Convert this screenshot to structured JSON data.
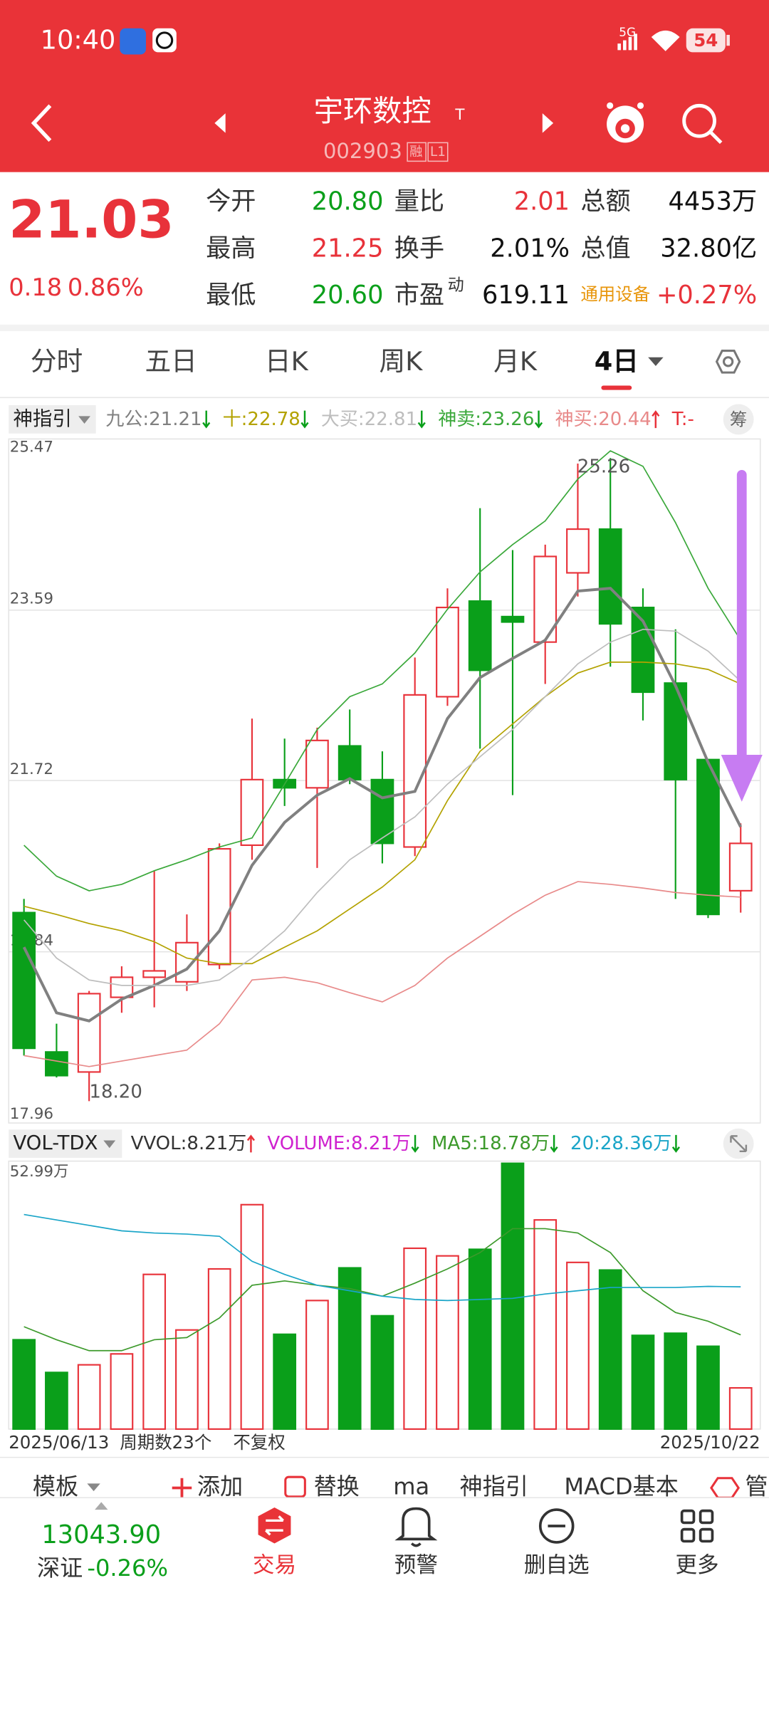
{
  "status_bar": {
    "time": "10:40",
    "network": "5G",
    "battery": "54"
  },
  "header": {
    "title": "宇环数控",
    "title_badge": "T",
    "code": "002903",
    "badges": [
      "融",
      "L1"
    ]
  },
  "quote": {
    "price": "21.03",
    "change": "0.18",
    "change_pct": "0.86%",
    "fields": [
      [
        {
          "label": "今开",
          "value": "20.80",
          "color": "#0a9f1a"
        },
        {
          "label": "量比",
          "value": "2.01",
          "color": "#e8323a"
        },
        {
          "label": "总额",
          "value": "4453万",
          "color": "#111111"
        }
      ],
      [
        {
          "label": "最高",
          "value": "21.25",
          "color": "#e8323a"
        },
        {
          "label": "换手",
          "value": "2.01%",
          "color": "#111111"
        },
        {
          "label": "总值",
          "value": "32.80亿",
          "color": "#111111"
        }
      ],
      [
        {
          "label": "最低",
          "value": "20.60",
          "color": "#0a9f1a"
        },
        {
          "label": "市盈",
          "label_sup": "动",
          "value": "619.11",
          "color": "#111111"
        },
        {
          "label": "通用设备",
          "label_color": "#e8960c",
          "value": "+0.27%",
          "color": "#e8323a"
        }
      ]
    ]
  },
  "tabs": {
    "items": [
      "分时",
      "五日",
      "日K",
      "周K",
      "月K",
      "4日"
    ],
    "active": 5
  },
  "kline": {
    "indicator": "神指引",
    "button": "筹",
    "ylim": [
      17.96,
      25.47
    ],
    "yticks": [
      17.96,
      19.84,
      21.72,
      23.59,
      25.47
    ],
    "annotations": {
      "high": "25.26",
      "low": "18.20"
    },
    "candles": [
      {
        "open": 20.27,
        "high": 20.42,
        "low": 18.7,
        "close": 18.78
      },
      {
        "open": 18.74,
        "high": 19.05,
        "low": 18.46,
        "close": 18.48
      },
      {
        "open": 18.52,
        "high": 19.41,
        "low": 18.2,
        "close": 19.38
      },
      {
        "open": 19.34,
        "high": 19.68,
        "low": 19.17,
        "close": 19.56
      },
      {
        "open": 19.56,
        "high": 20.73,
        "low": 19.23,
        "close": 19.63
      },
      {
        "open": 19.51,
        "high": 20.25,
        "low": 19.41,
        "close": 19.94
      },
      {
        "open": 19.7,
        "high": 21.03,
        "low": 19.65,
        "close": 20.97
      },
      {
        "open": 21.01,
        "high": 22.4,
        "low": 20.85,
        "close": 21.73
      },
      {
        "open": 21.73,
        "high": 22.18,
        "low": 21.44,
        "close": 21.64
      },
      {
        "open": 21.64,
        "high": 22.3,
        "low": 20.76,
        "close": 22.16
      },
      {
        "open": 22.1,
        "high": 22.5,
        "low": 21.68,
        "close": 21.73
      },
      {
        "open": 21.73,
        "high": 22.04,
        "low": 20.81,
        "close": 21.03
      },
      {
        "open": 20.99,
        "high": 23.07,
        "low": 20.89,
        "close": 22.66
      },
      {
        "open": 22.64,
        "high": 23.83,
        "low": 22.54,
        "close": 23.62
      },
      {
        "open": 23.69,
        "high": 24.71,
        "low": 22.07,
        "close": 22.93
      },
      {
        "open": 23.52,
        "high": 24.25,
        "low": 21.56,
        "close": 23.46
      },
      {
        "open": 23.24,
        "high": 24.31,
        "low": 22.78,
        "close": 24.18
      },
      {
        "open": 24.0,
        "high": 25.2,
        "low": 23.74,
        "close": 24.48
      },
      {
        "open": 24.48,
        "high": 25.26,
        "low": 22.97,
        "close": 23.44
      },
      {
        "open": 23.62,
        "high": 23.83,
        "low": 22.38,
        "close": 22.69
      },
      {
        "open": 22.79,
        "high": 23.38,
        "low": 20.42,
        "close": 21.73
      },
      {
        "open": 21.95,
        "high": 21.95,
        "low": 20.21,
        "close": 20.25
      },
      {
        "open": 20.51,
        "high": 21.25,
        "low": 20.27,
        "close": 21.03
      }
    ],
    "series": [
      {
        "label": "九公:",
        "value": "21.21",
        "trend": "down",
        "color": "#808080",
        "values": [
          19.89,
          19.17,
          19.08,
          19.32,
          19.47,
          19.65,
          20.07,
          20.79,
          21.26,
          21.56,
          21.74,
          21.53,
          21.6,
          22.4,
          22.85,
          23.06,
          23.26,
          23.8,
          23.83,
          23.47,
          22.76,
          21.92,
          21.21
        ]
      },
      {
        "label": "十:",
        "value": "22.78",
        "trend": "down",
        "color": "#b3a200",
        "values": [
          20.34,
          20.25,
          20.15,
          20.07,
          19.95,
          19.77,
          19.71,
          19.71,
          19.89,
          20.07,
          20.31,
          20.55,
          20.85,
          21.5,
          22.04,
          22.34,
          22.64,
          22.9,
          23.02,
          23.02,
          23.0,
          22.94,
          22.78
        ]
      },
      {
        "label": "大买:",
        "value": "22.81",
        "trend": "down",
        "color": "#bdbdbd",
        "values": [
          20.19,
          19.77,
          19.53,
          19.47,
          19.47,
          19.47,
          19.53,
          19.77,
          20.07,
          20.49,
          20.85,
          21.09,
          21.32,
          21.68,
          21.98,
          22.28,
          22.64,
          23.0,
          23.24,
          23.38,
          23.36,
          23.14,
          22.81
        ]
      },
      {
        "label": "神卖:",
        "value": "23.26",
        "trend": "down",
        "color": "#3aa83a",
        "values": [
          21.01,
          20.67,
          20.51,
          20.58,
          20.73,
          20.85,
          20.99,
          21.09,
          21.68,
          22.28,
          22.64,
          22.78,
          23.12,
          23.6,
          24.01,
          24.31,
          24.57,
          25.03,
          25.34,
          25.17,
          24.55,
          23.83,
          23.26
        ]
      },
      {
        "label": "神买:",
        "value": "20.44",
        "trend": "up",
        "color": "#e88a8a",
        "values": [
          18.7,
          18.64,
          18.58,
          18.64,
          18.7,
          18.76,
          19.05,
          19.53,
          19.56,
          19.5,
          19.39,
          19.29,
          19.47,
          19.77,
          20.01,
          20.25,
          20.46,
          20.61,
          20.58,
          20.54,
          20.49,
          20.46,
          20.44
        ]
      },
      {
        "label": "T:",
        "value": "-",
        "color": "#e8323a"
      }
    ]
  },
  "volume": {
    "indicator": "VOL-TDX",
    "ylim": [
      0,
      52.99
    ],
    "yticks": [
      {
        "value": 52.99,
        "label": "52.99万"
      }
    ],
    "values": [
      17.81,
      11.29,
      12.81,
      14.99,
      30.84,
      19.76,
      31.93,
      44.74,
      18.9,
      25.63,
      32.14,
      22.59,
      36.05,
      34.53,
      35.84,
      52.99,
      41.7,
      33.23,
      31.71,
      18.68,
      19.11,
      16.51,
      8.21
    ],
    "series": [
      {
        "label": "VVOL:",
        "value": "8.21万",
        "trend": "up",
        "color": "#333333"
      },
      {
        "label": "VOLUME:",
        "value": "8.21万",
        "trend": "down",
        "color": "#cf22cf"
      },
      {
        "label": "MA5:",
        "value": "18.78万",
        "trend": "down",
        "color": "#3d9a2c",
        "values": [
          20.42,
          17.81,
          15.64,
          15.64,
          17.81,
          18.24,
          22.15,
          28.67,
          29.54,
          28.67,
          28.02,
          26.5,
          29.1,
          31.93,
          35.18,
          39.96,
          39.96,
          39.09,
          35.18,
          27.58,
          23.24,
          21.5,
          18.78
        ]
      },
      {
        "label": "20:",
        "value": "28.36万",
        "trend": "down",
        "color": "#1aa5c8",
        "values": [
          42.79,
          41.7,
          40.62,
          39.53,
          39.1,
          38.88,
          38.44,
          33.45,
          30.84,
          28.67,
          27.58,
          26.5,
          25.85,
          25.63,
          25.85,
          26.06,
          26.93,
          27.58,
          28.24,
          28.24,
          28.24,
          28.45,
          28.36
        ]
      }
    ],
    "x_labels": {
      "start": "2025/06/13",
      "periods": "周期数23个",
      "adjust": "不复权",
      "end": "2025/10/22"
    }
  },
  "toolbar": [
    "模板",
    "添加",
    "替换",
    "ma",
    "神指引",
    "MACD基本",
    "管"
  ],
  "bottom_nav": {
    "index_value": "13043.90",
    "index_name": "深证",
    "index_change": "-0.26%",
    "items": [
      {
        "label": "交易",
        "active": true
      },
      {
        "label": "预警"
      },
      {
        "label": "删自选"
      },
      {
        "label": "更多"
      }
    ]
  }
}
